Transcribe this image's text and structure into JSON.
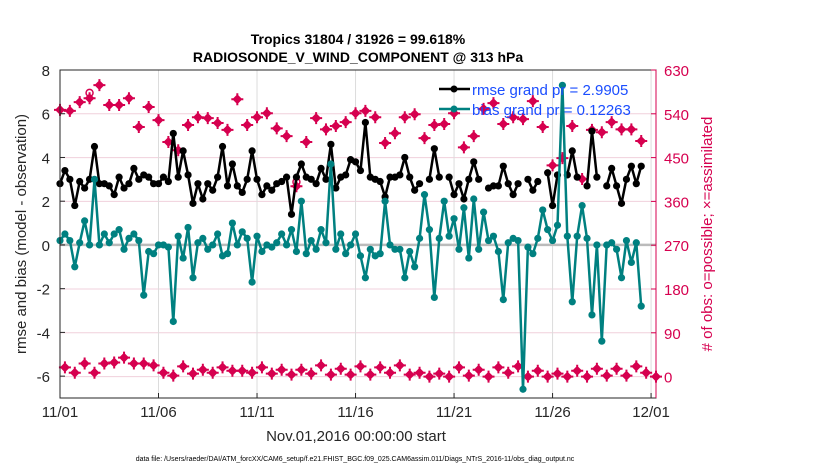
{
  "chart_data": {
    "type": "line",
    "title": [
      "Tropics 31804 / 31926 = 99.618%",
      "RADIOSONDE_V_WIND_COMPONENT @ 313 hPa"
    ],
    "xlabel": "Nov.01,2016 00:00:00 start",
    "ylabel_left": "rmse and bias (model - observation)",
    "ylabel_right": "# of obs: o=possible; ×=assimilated",
    "footnote": "data file: /Users/raeder/DAI/ATM_forcXX/CAM6_setup/f.e21.FHIST_BGC.f09_025.CAM6assim.011/Diags_NTrS_2016-11/obs_diag_output.nc",
    "start": "2016-11-01 00:00",
    "time_step_hours": 6,
    "x_ticks": [
      "11/01",
      "11/06",
      "11/11",
      "11/16",
      "11/21",
      "11/26",
      "12/01"
    ],
    "x_tick_days": [
      0,
      5,
      10,
      15,
      20,
      25,
      30
    ],
    "xlim_days": [
      0,
      30.25
    ],
    "ylim_left": [
      -7,
      8
    ],
    "y_ticks_left": [
      8,
      6,
      4,
      2,
      0,
      -2,
      -4,
      -6
    ],
    "ylim_right": [
      -44,
      630
    ],
    "y_ticks_right": [
      630,
      540,
      450,
      360,
      270,
      180,
      90,
      0
    ],
    "grid": true,
    "legend_placement": "top-right",
    "colors": {
      "rmse": "#000000",
      "bias": "#008080",
      "obs": "#d6004f",
      "legend_text": "#1a4dff",
      "zero_line": "#bbbbbb"
    },
    "series": [
      {
        "name": "rmse grand pr = 2.9905",
        "axis": "left",
        "values": [
          2.8,
          3.4,
          3.0,
          1.8,
          2.9,
          2.6,
          3.0,
          4.5,
          2.8,
          2.8,
          2.7,
          2.3,
          3.1,
          2.6,
          2.8,
          3.5,
          3.0,
          3.2,
          3.1,
          2.8,
          2.8,
          3.1,
          2.9,
          5.1,
          3.1,
          4.3,
          3.2,
          1.9,
          2.8,
          2.1,
          2.8,
          2.5,
          3.1,
          4.5,
          2.7,
          3.7,
          2.7,
          2.4,
          3.0,
          4.3,
          3.0,
          2.3,
          2.7,
          2.5,
          2.8,
          2.9,
          3.1,
          1.4,
          3.1,
          3.7,
          3.1,
          3.0,
          2.8,
          3.5,
          3.0,
          4.6,
          2.6,
          3.1,
          3.2,
          3.9,
          3.8,
          3.4,
          5.6,
          3.1,
          3.0,
          2.9,
          2.2,
          3.1,
          3.1,
          3.2,
          4.0,
          3.1,
          2.5,
          2.8,
          null,
          3.0,
          4.4,
          3.1,
          null,
          3.1,
          2.3,
          2.8,
          2.1,
          3.0,
          3.8,
          3.0,
          null,
          2.6,
          2.7,
          2.7,
          3.6,
          2.8,
          2.3,
          2.8,
          null,
          3.0,
          2.5,
          2.9,
          null,
          3.3,
          1.8,
          3.2,
          null,
          3.2,
          4.3,
          3.1,
          null,
          2.7,
          5.2,
          3.1,
          null,
          2.7,
          3.5,
          2.7,
          1.9,
          3.0,
          3.6,
          2.8,
          3.6
        ]
      },
      {
        "name": "bias grand pr = 0.12263",
        "axis": "left",
        "values": [
          0.2,
          0.5,
          0.2,
          -1.0,
          0.1,
          1.1,
          0.0,
          3.0,
          0.0,
          0.5,
          0.1,
          0.5,
          0.7,
          -0.2,
          0.3,
          0.5,
          0.2,
          -2.3,
          -0.3,
          -0.4,
          0.0,
          0.0,
          -0.1,
          -3.5,
          0.4,
          -0.6,
          0.8,
          -1.5,
          0.1,
          0.3,
          -0.2,
          0.0,
          0.5,
          -0.5,
          -0.4,
          1.0,
          0.0,
          0.6,
          0.3,
          -1.7,
          0.4,
          -0.3,
          0.0,
          -0.1,
          0.1,
          0.5,
          0.0,
          0.7,
          -0.3,
          2.0,
          -0.4,
          0.2,
          -0.2,
          0.7,
          0.1,
          3.7,
          -0.2,
          0.5,
          -0.4,
          0.0,
          0.5,
          -0.5,
          -1.5,
          -0.2,
          -0.5,
          -0.4,
          2.0,
          0.0,
          -0.2,
          -0.2,
          -1.5,
          -0.3,
          -1.0,
          0.3,
          2.3,
          0.7,
          -2.4,
          0.3,
          2.0,
          0.4,
          1.2,
          -0.2,
          1.7,
          -0.6,
          2.1,
          -0.2,
          1.5,
          0.2,
          0.4,
          -0.3,
          -2.5,
          0.1,
          0.3,
          0.2,
          -6.6,
          -0.1,
          -0.4,
          0.3,
          1.6,
          0.7,
          0.2,
          0.9,
          7.3,
          0.4,
          -2.6,
          0.4,
          1.8,
          0.3,
          -3.2,
          0.0,
          -4.4,
          0.0,
          0.1,
          -0.2,
          -1.5,
          0.2,
          -0.8,
          0.1,
          -2.8
        ]
      },
      {
        "name": "o=possible",
        "axis": "right",
        "marker": "o",
        "values": [
          548,
          19,
          546,
          8,
          564,
          27,
          583,
          8,
          599,
          27,
          558,
          29,
          558,
          39,
          572,
          27,
          513,
          27,
          554,
          23,
          527,
          8,
          482,
          2,
          465,
          21,
          517,
          6,
          533,
          14,
          531,
          8,
          521,
          19,
          507,
          12,
          570,
          12,
          517,
          8,
          533,
          19,
          541,
          6,
          510,
          14,
          494,
          4,
          400,
          14,
          482,
          6,
          531,
          23,
          508,
          4,
          515,
          16,
          523,
          4,
          541,
          21,
          546,
          4,
          533,
          19,
          480,
          8,
          500,
          23,
          533,
          4,
          539,
          8,
          490,
          0,
          517,
          6,
          519,
          0,
          541,
          19,
          471,
          2,
          494,
          14,
          550,
          0,
          562,
          19,
          519,
          8,
          533,
          21,
          529,
          0,
          566,
          12,
          513,
          0,
          434,
          6,
          449,
          0,
          515,
          12,
          406,
          0,
          507,
          16,
          502,
          2,
          523,
          16,
          508,
          2,
          508,
          21,
          484,
          8,
          null,
          0
        ]
      },
      {
        "name": "×=assimilated",
        "axis": "right",
        "marker": "*",
        "values": [
          548,
          19,
          546,
          8,
          564,
          27,
          572,
          8,
          599,
          27,
          558,
          29,
          558,
          39,
          572,
          27,
          513,
          27,
          554,
          23,
          527,
          8,
          482,
          2,
          465,
          21,
          517,
          6,
          533,
          14,
          531,
          8,
          521,
          19,
          507,
          12,
          570,
          12,
          517,
          8,
          533,
          19,
          541,
          6,
          510,
          14,
          494,
          4,
          391,
          14,
          482,
          6,
          531,
          23,
          508,
          4,
          515,
          16,
          523,
          4,
          541,
          21,
          546,
          4,
          533,
          19,
          480,
          8,
          500,
          23,
          533,
          4,
          539,
          8,
          490,
          0,
          517,
          6,
          519,
          0,
          541,
          19,
          471,
          2,
          494,
          14,
          550,
          0,
          562,
          19,
          519,
          8,
          533,
          21,
          529,
          0,
          566,
          12,
          513,
          0,
          434,
          6,
          449,
          0,
          515,
          12,
          406,
          0,
          507,
          16,
          502,
          2,
          523,
          16,
          508,
          2,
          508,
          21,
          484,
          8,
          null,
          0
        ]
      }
    ]
  }
}
